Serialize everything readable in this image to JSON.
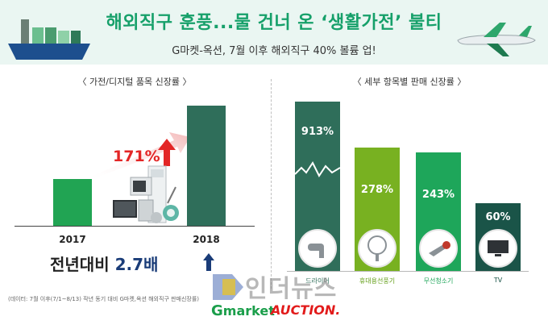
{
  "header": {
    "title": "해외직구 훈풍...물 건너 온 ‘생활가전’ 불티",
    "subtitle": "G마켓-옥션, 7월 이후 해외직구 40% 볼륨 업!"
  },
  "left_panel": {
    "title": "〈 가전/디지털 품목 신장률 〉",
    "growth_label": "171%",
    "yoy_prefix": "전년대비",
    "yoy_value": "2.7배"
  },
  "right_panel": {
    "title": "〈 세부 항목별 판매 신장률 〉"
  },
  "footnote": "(데이터: 7월 이후(7/1~8/13) 작년 동기 대비 G마켓,옥션 해외직구 판매신장률)",
  "watermark": "인더뉴스",
  "logos": {
    "gmarket": "market",
    "gmarket_g": "G",
    "auction": "AUCTION."
  },
  "colors": {
    "title": "#16a06a",
    "bar_2017": "#21a453",
    "bar_2018": "#2f6e5a",
    "growth": "#e32626"
  },
  "chart_data": [
    {
      "type": "bar",
      "title": "가전/디지털 품목 신장률",
      "categories": [
        "2017",
        "2018"
      ],
      "values": [
        1,
        2.71
      ],
      "annotations": [
        "171%",
        "전년대비 2.7배"
      ]
    },
    {
      "type": "bar",
      "title": "세부 항목별 판매 신장률",
      "categories": [
        "드라이어",
        "휴대용선풍기",
        "무선청소기",
        "TV"
      ],
      "values": [
        913,
        278,
        243,
        60
      ],
      "value_labels": [
        "913%",
        "278%",
        "243%",
        "60%"
      ],
      "category_colors": [
        "#2f6e5a",
        "#78b121",
        "#1ea65a",
        "#1a5448"
      ],
      "axis_break": "드라이어"
    }
  ]
}
